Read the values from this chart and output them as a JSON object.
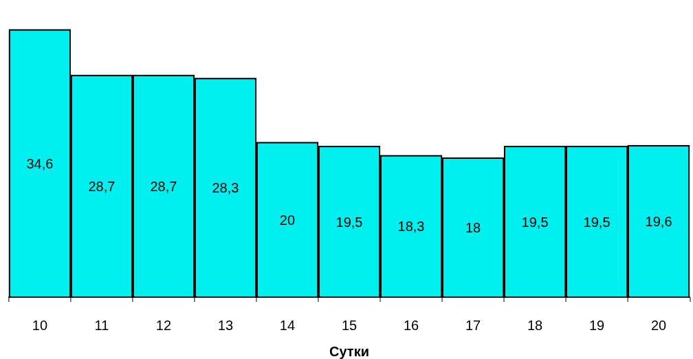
{
  "chart_data": {
    "type": "bar",
    "xlabel": "Сутки",
    "categories": [
      "10",
      "11",
      "12",
      "13",
      "14",
      "15",
      "16",
      "17",
      "18",
      "19",
      "20"
    ],
    "values": [
      34.6,
      28.7,
      28.7,
      28.3,
      20,
      19.5,
      18.3,
      18,
      19.5,
      19.5,
      19.6
    ],
    "value_labels": [
      "34,6",
      "28,7",
      "28,7",
      "28,3",
      "20",
      "19,5",
      "18,3",
      "18",
      "19,5",
      "19,5",
      "19,6"
    ],
    "color": "#00f0f0",
    "tick_labels": "x"
  }
}
